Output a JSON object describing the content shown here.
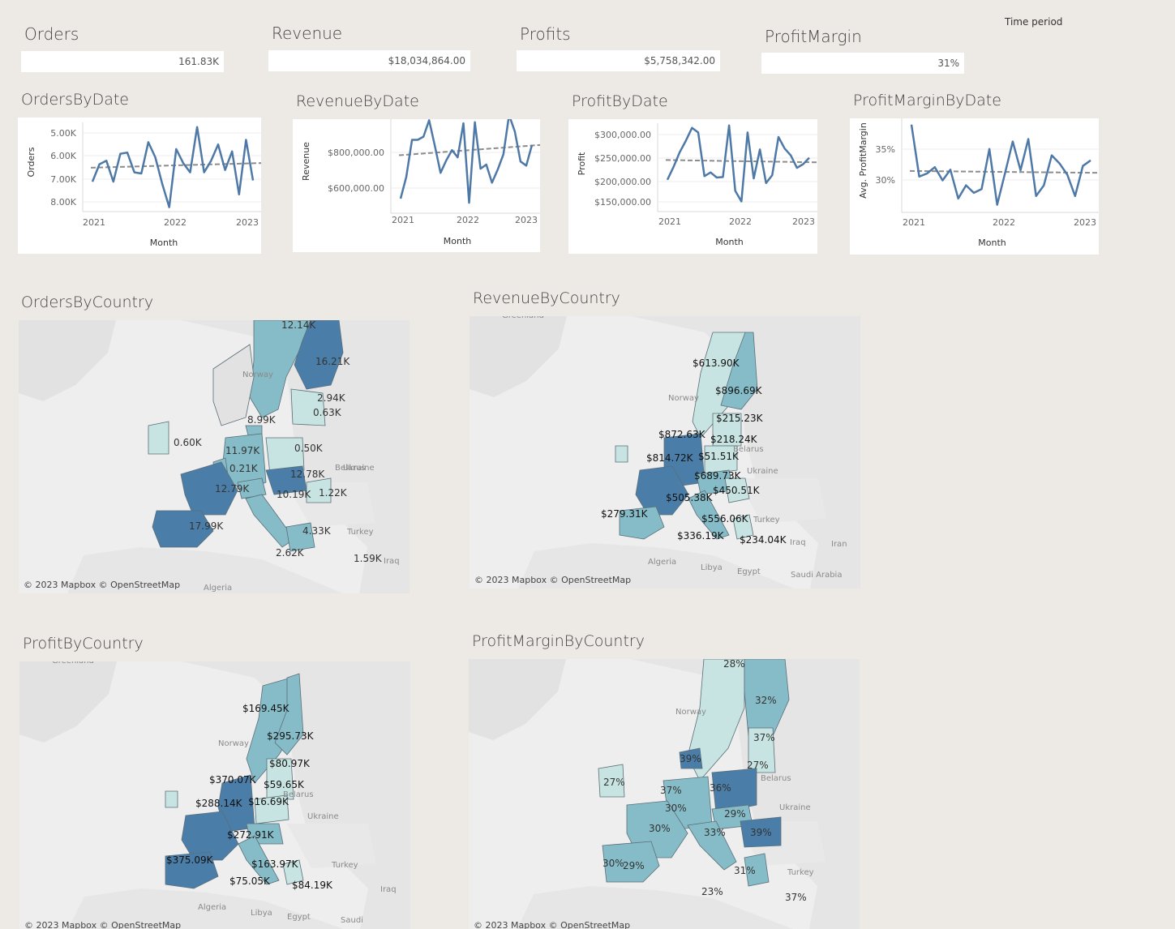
{
  "kpis": [
    {
      "title": "Orders",
      "value": "161.83K"
    },
    {
      "title": "Revenue",
      "value": "$18,034,864.00"
    },
    {
      "title": "Profits",
      "value": "$5,758,342.00"
    },
    {
      "title": "ProfitMargin",
      "value": "31%"
    }
  ],
  "filter": {
    "time_period_label": "Time period"
  },
  "chart_data": [
    {
      "type": "line",
      "title": "OrdersByDate",
      "xlabel": "Month",
      "ylabel": "Orders",
      "x_ticks": [
        "2021",
        "2022",
        "2023"
      ],
      "y_ticks": [
        "5.00K",
        "6.00K",
        "7.00K",
        "8.00K"
      ],
      "ylim": [
        4900,
        8600
      ],
      "trendline": [
        6650,
        6850
      ],
      "series": [
        {
          "values": [
            6050,
            6800,
            6950,
            6050,
            7250,
            7300,
            6450,
            6400,
            7750,
            7100,
            5950,
            4950,
            7450,
            6850,
            6450,
            8400,
            6450,
            6950,
            7650,
            6550,
            7350,
            5500,
            7850,
            6100
          ]
        }
      ]
    },
    {
      "type": "line",
      "title": "RevenueByDate",
      "xlabel": "Month",
      "ylabel": "Revenue",
      "x_ticks": [
        "2021",
        "2022",
        "2023"
      ],
      "y_ticks": [
        "$600,000.00",
        "$800,000.00"
      ],
      "ylim": [
        480000,
        920000
      ],
      "trendline": [
        745000,
        795000
      ],
      "series": [
        {
          "values": [
            535000,
            640000,
            820000,
            820000,
            835000,
            915000,
            790000,
            660000,
            720000,
            770000,
            735000,
            900000,
            515000,
            905000,
            680000,
            700000,
            612000,
            675000,
            750000,
            940000,
            860000,
            715000,
            695000,
            795000
          ]
        }
      ]
    },
    {
      "type": "line",
      "title": "ProfitByDate",
      "xlabel": "Month",
      "ylabel": "Profit",
      "x_ticks": [
        "2021",
        "2022",
        "2023"
      ],
      "y_ticks": [
        "$150,000.00",
        "$200,000.00",
        "$250,000.00",
        "$300,000.00"
      ],
      "ylim": [
        140000,
        325000
      ],
      "trendline": [
        245000,
        240000
      ],
      "series": [
        {
          "values": [
            202000,
            230000,
            262000,
            287000,
            315000,
            305000,
            210000,
            218000,
            207000,
            208000,
            320000,
            178000,
            155000,
            305000,
            205000,
            268000,
            195000,
            212000,
            295000,
            270000,
            255000,
            228000,
            236000,
            250000
          ]
        }
      ]
    },
    {
      "type": "line",
      "title": "ProfitMarginByDate",
      "xlabel": "Month",
      "ylabel": "Avg. ProfitMargin",
      "x_ticks": [
        "2021",
        "2022",
        "2023"
      ],
      "y_ticks": [
        "30%",
        "35%"
      ],
      "ylim": [
        25.5,
        40
      ],
      "trendline": [
        31.6,
        31.3
      ],
      "series": [
        {
          "values": [
            39,
            30.7,
            31.2,
            32.2,
            30.1,
            31.8,
            27.2,
            29.3,
            28.1,
            28.7,
            35.1,
            26.2,
            31.2,
            36.3,
            31.7,
            36.7,
            27.6,
            29.3,
            34.1,
            32.8,
            31,
            27.6,
            32.4,
            33.3
          ]
        }
      ]
    }
  ],
  "maps": [
    {
      "title": "OrdersByCountry",
      "credit": "© 2023 Mapbox © OpenStreetMap",
      "places": [
        "Norway",
        "Belarus",
        "Ukraine",
        "Turkey",
        "Iraq",
        "Algeria"
      ],
      "labels": [
        "12.14K",
        "16.21K",
        "2.94K",
        "0.63K",
        "8.99K",
        "0.60K",
        "11.97K",
        "0.50K",
        "0.21K",
        "12.78K",
        "12.79K",
        "10.19K",
        "1.22K",
        "17.99K",
        "4.33K",
        "2.62K",
        "1.59K"
      ]
    },
    {
      "title": "RevenueByCountry",
      "credit": "© 2023 Mapbox © OpenStreetMap",
      "places": [
        "Greenland",
        "Norway",
        "Belarus",
        "Ukraine",
        "Turkey",
        "Iraq",
        "Iran",
        "Algeria",
        "Libya",
        "Egypt",
        "Saudi Arabia"
      ],
      "labels": [
        "$613.90K",
        "$896.69K",
        "$215.23K",
        "$872.63K",
        "$218.24K",
        "$814.72K",
        "$51.51K",
        "$689.73K",
        "$450.51K",
        "$505.38K",
        "$279.31K",
        "$556.06K",
        "$336.19K",
        "$234.04K"
      ]
    },
    {
      "title": "ProfitByCountry",
      "credit": "© 2023 Mapbox © OpenStreetMap",
      "places": [
        "Greenland",
        "Norway",
        "Belarus",
        "Ukraine",
        "Turkey",
        "Iraq",
        "Iran",
        "Algeria",
        "Libya",
        "Egypt",
        "Saudi"
      ],
      "labels": [
        "$169.45K",
        "$295.73K",
        "$80.97K",
        "$370.07K",
        "$59.65K",
        "$288.14K",
        "$16.69K",
        "$272.91K",
        "$375.09K",
        "$163.97K",
        "$75.05K",
        "$84.19K"
      ]
    },
    {
      "title": "ProfitMarginByCountry",
      "credit": "© 2023 Mapbox © OpenStreetMap",
      "places": [
        "Norway",
        "Belarus",
        "Ukraine",
        "Turkey"
      ],
      "labels": [
        "28%",
        "32%",
        "37%",
        "39%",
        "27%",
        "27%",
        "37%",
        "36%",
        "30%",
        "29%",
        "30%",
        "33%",
        "39%",
        "30%",
        "29%",
        "31%",
        "23%",
        "37%"
      ]
    }
  ],
  "colors": {
    "background": "#edeae6",
    "line": "#4e79a7",
    "trend": "#8c8c8c",
    "map_land": "#e2e2e2",
    "map_sea": "#eeeeee",
    "choropleth_light": "#c8e4e2",
    "choropleth_mid": "#86bcc8",
    "choropleth_dark": "#4a7ea8"
  }
}
